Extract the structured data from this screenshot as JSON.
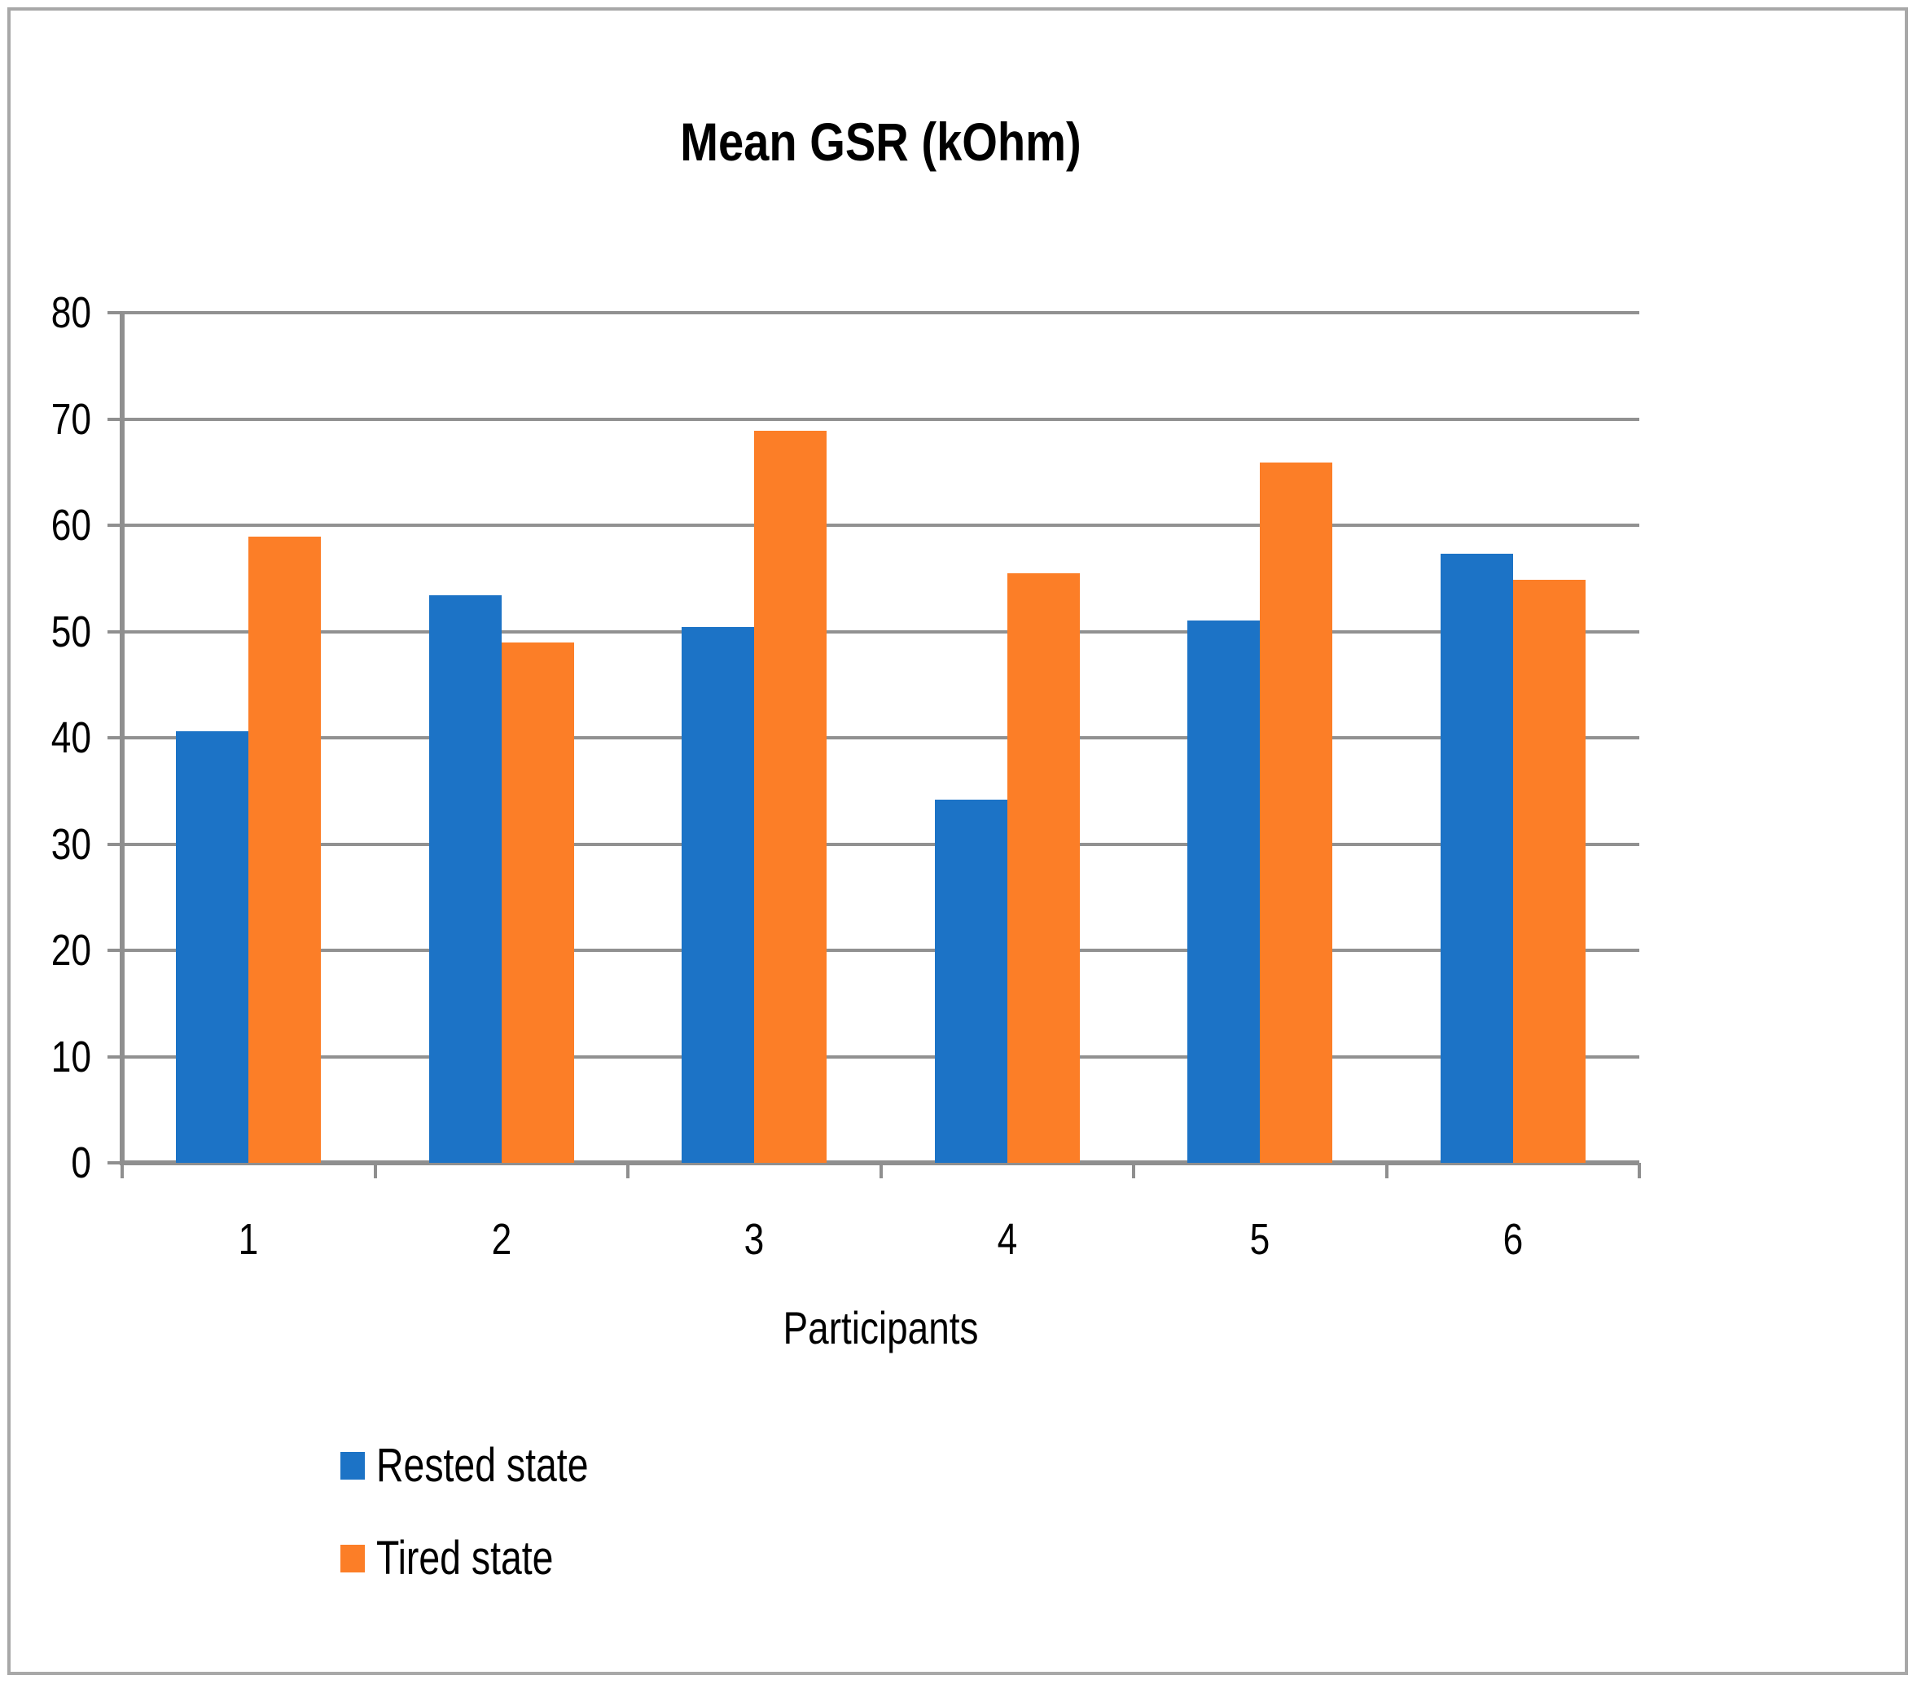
{
  "title": "Mean GSR (kOhm)",
  "x_axis_label": "Participants",
  "colors": {
    "rested": "#1c73c6",
    "tired": "#fc7e27",
    "gridline": "#919191",
    "axis": "#8f8f8f",
    "border": "#a8a8a8"
  },
  "chart_data": {
    "type": "bar",
    "title": "Mean GSR (kOhm)",
    "xlabel": "Participants",
    "ylabel": "",
    "categories": [
      "1",
      "2",
      "3",
      "4",
      "5",
      "6"
    ],
    "series": [
      {
        "name": "Rested state",
        "color": "#1c73c6",
        "values": [
          40.6,
          53.4,
          50.4,
          34.2,
          51.0,
          57.3
        ]
      },
      {
        "name": "Tired state",
        "color": "#fc7e27",
        "values": [
          58.9,
          49.0,
          68.9,
          55.5,
          65.9,
          54.9
        ]
      }
    ],
    "ylim": [
      0,
      80
    ],
    "ytick_step": 10,
    "y_tick_labels": [
      "0",
      "10",
      "20",
      "30",
      "40",
      "50",
      "60",
      "70",
      "80"
    ],
    "grid": true,
    "legend_position": "bottom-left"
  }
}
